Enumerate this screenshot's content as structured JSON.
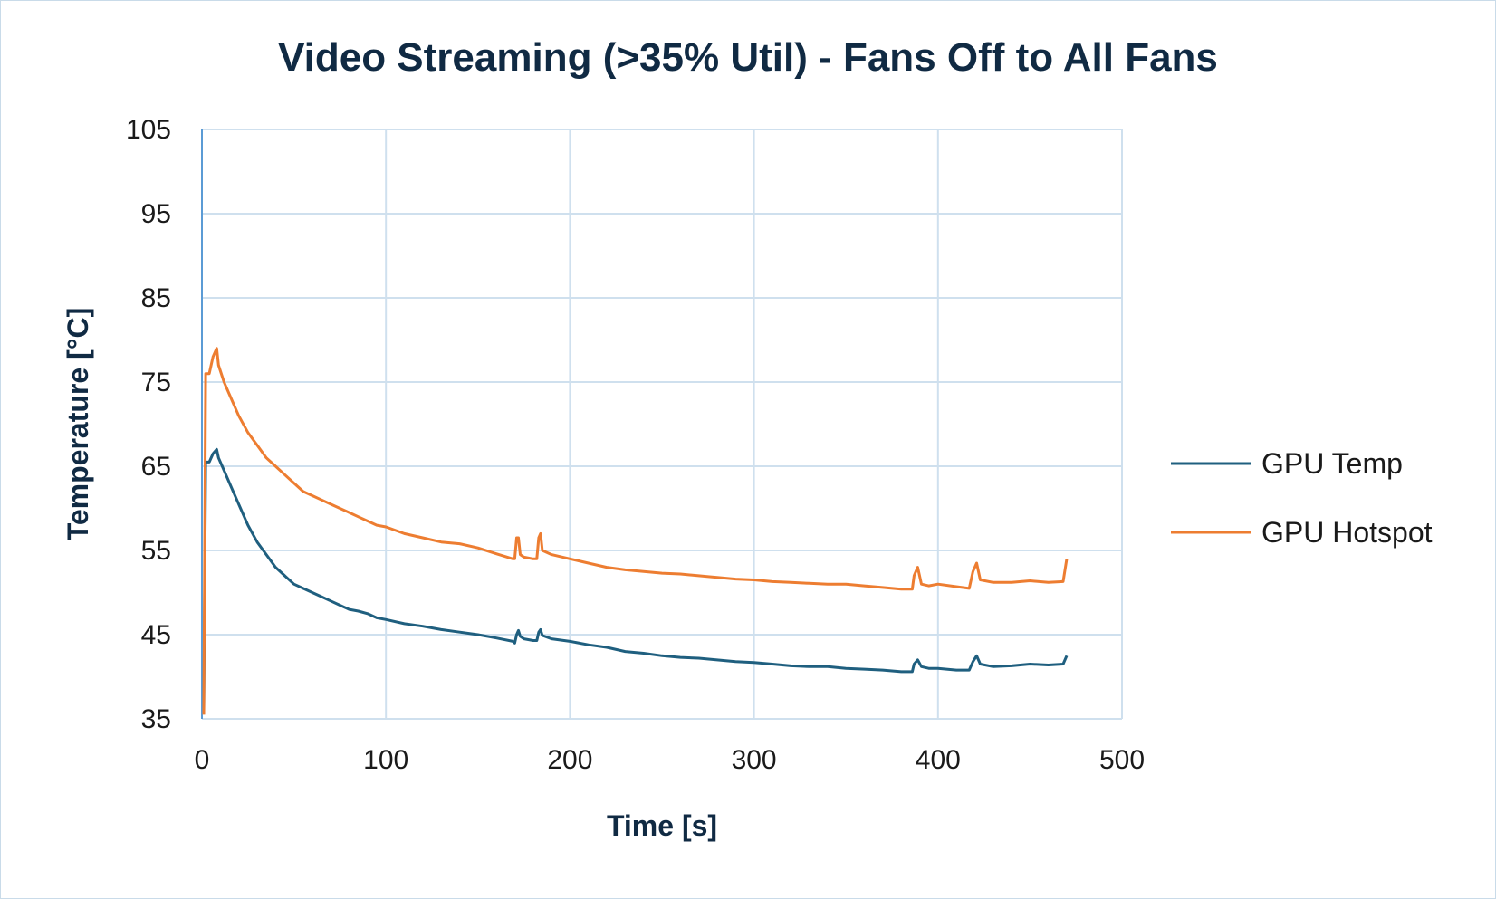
{
  "chart_data": {
    "type": "line",
    "title": "Video Streaming (>35% Util) - Fans Off to All Fans",
    "xlabel": "Time [s]",
    "ylabel": "Temperature [°C]",
    "xlim": [
      0,
      500
    ],
    "ylim": [
      35,
      105
    ],
    "xticks": [
      0,
      100,
      200,
      300,
      400,
      500
    ],
    "yticks": [
      35,
      45,
      55,
      65,
      75,
      85,
      95,
      105
    ],
    "x_tick_labels": [
      "0",
      "100",
      "200",
      "300",
      "400",
      "500"
    ],
    "y_tick_labels": [
      "35",
      "45",
      "55",
      "65",
      "75",
      "85",
      "95",
      "105"
    ],
    "grid": true,
    "legend_position": "right",
    "series": [
      {
        "name": "GPU Temp",
        "color": "#1f5f7f",
        "points": [
          [
            1,
            36
          ],
          [
            2,
            65.5
          ],
          [
            4,
            65.5
          ],
          [
            6,
            66.5
          ],
          [
            8,
            67
          ],
          [
            9,
            66
          ],
          [
            12,
            64.5
          ],
          [
            16,
            62.5
          ],
          [
            20,
            60.5
          ],
          [
            25,
            58
          ],
          [
            30,
            56
          ],
          [
            35,
            54.5
          ],
          [
            40,
            53
          ],
          [
            45,
            52
          ],
          [
            50,
            51
          ],
          [
            55,
            50.5
          ],
          [
            60,
            50
          ],
          [
            65,
            49.5
          ],
          [
            70,
            49
          ],
          [
            75,
            48.5
          ],
          [
            80,
            48
          ],
          [
            85,
            47.8
          ],
          [
            90,
            47.5
          ],
          [
            95,
            47
          ],
          [
            100,
            46.8
          ],
          [
            110,
            46.3
          ],
          [
            120,
            46
          ],
          [
            130,
            45.6
          ],
          [
            140,
            45.3
          ],
          [
            150,
            45
          ],
          [
            160,
            44.6
          ],
          [
            169,
            44.2
          ],
          [
            170,
            44
          ],
          [
            171,
            45
          ],
          [
            172,
            45.5
          ],
          [
            173,
            44.8
          ],
          [
            175,
            44.5
          ],
          [
            180,
            44.3
          ],
          [
            182,
            44.3
          ],
          [
            183,
            45.3
          ],
          [
            184,
            45.6
          ],
          [
            185,
            44.9
          ],
          [
            190,
            44.5
          ],
          [
            200,
            44.2
          ],
          [
            210,
            43.8
          ],
          [
            220,
            43.5
          ],
          [
            230,
            43
          ],
          [
            240,
            42.8
          ],
          [
            250,
            42.5
          ],
          [
            260,
            42.3
          ],
          [
            270,
            42.2
          ],
          [
            280,
            42
          ],
          [
            290,
            41.8
          ],
          [
            300,
            41.7
          ],
          [
            310,
            41.5
          ],
          [
            320,
            41.3
          ],
          [
            330,
            41.2
          ],
          [
            340,
            41.2
          ],
          [
            350,
            41
          ],
          [
            360,
            40.9
          ],
          [
            370,
            40.8
          ],
          [
            380,
            40.6
          ],
          [
            386,
            40.6
          ],
          [
            387,
            41.5
          ],
          [
            389,
            42
          ],
          [
            391,
            41.2
          ],
          [
            395,
            41
          ],
          [
            400,
            41
          ],
          [
            410,
            40.8
          ],
          [
            417,
            40.8
          ],
          [
            419,
            41.8
          ],
          [
            421,
            42.5
          ],
          [
            423,
            41.5
          ],
          [
            430,
            41.2
          ],
          [
            440,
            41.3
          ],
          [
            450,
            41.5
          ],
          [
            460,
            41.4
          ],
          [
            468,
            41.5
          ],
          [
            470,
            42.5
          ]
        ]
      },
      {
        "name": "GPU Hotspot",
        "color": "#ed7d31",
        "points": [
          [
            1,
            35.5
          ],
          [
            2,
            76
          ],
          [
            4,
            76
          ],
          [
            6,
            78
          ],
          [
            8,
            79
          ],
          [
            9,
            77
          ],
          [
            12,
            75
          ],
          [
            16,
            73
          ],
          [
            20,
            71
          ],
          [
            25,
            69
          ],
          [
            30,
            67.5
          ],
          [
            35,
            66
          ],
          [
            40,
            65
          ],
          [
            45,
            64
          ],
          [
            50,
            63
          ],
          [
            55,
            62
          ],
          [
            60,
            61.5
          ],
          [
            65,
            61
          ],
          [
            70,
            60.5
          ],
          [
            75,
            60
          ],
          [
            80,
            59.5
          ],
          [
            85,
            59
          ],
          [
            90,
            58.5
          ],
          [
            95,
            58
          ],
          [
            100,
            57.8
          ],
          [
            110,
            57
          ],
          [
            120,
            56.5
          ],
          [
            130,
            56
          ],
          [
            140,
            55.8
          ],
          [
            150,
            55.3
          ],
          [
            160,
            54.6
          ],
          [
            169,
            54
          ],
          [
            170,
            54
          ],
          [
            171,
            56.5
          ],
          [
            172,
            56.5
          ],
          [
            173,
            54.5
          ],
          [
            175,
            54.2
          ],
          [
            180,
            54
          ],
          [
            182,
            54
          ],
          [
            183,
            56.5
          ],
          [
            184,
            57
          ],
          [
            185,
            55
          ],
          [
            190,
            54.5
          ],
          [
            200,
            54
          ],
          [
            210,
            53.5
          ],
          [
            220,
            53
          ],
          [
            230,
            52.7
          ],
          [
            240,
            52.5
          ],
          [
            250,
            52.3
          ],
          [
            260,
            52.2
          ],
          [
            270,
            52
          ],
          [
            280,
            51.8
          ],
          [
            290,
            51.6
          ],
          [
            300,
            51.5
          ],
          [
            310,
            51.3
          ],
          [
            320,
            51.2
          ],
          [
            330,
            51.1
          ],
          [
            340,
            51
          ],
          [
            350,
            51
          ],
          [
            360,
            50.8
          ],
          [
            370,
            50.6
          ],
          [
            380,
            50.4
          ],
          [
            386,
            50.4
          ],
          [
            387,
            52
          ],
          [
            389,
            53
          ],
          [
            391,
            51
          ],
          [
            395,
            50.8
          ],
          [
            400,
            51
          ],
          [
            410,
            50.7
          ],
          [
            417,
            50.5
          ],
          [
            419,
            52.5
          ],
          [
            421,
            53.5
          ],
          [
            423,
            51.5
          ],
          [
            430,
            51.2
          ],
          [
            440,
            51.2
          ],
          [
            450,
            51.4
          ],
          [
            460,
            51.2
          ],
          [
            468,
            51.3
          ],
          [
            470,
            54
          ]
        ]
      }
    ]
  }
}
